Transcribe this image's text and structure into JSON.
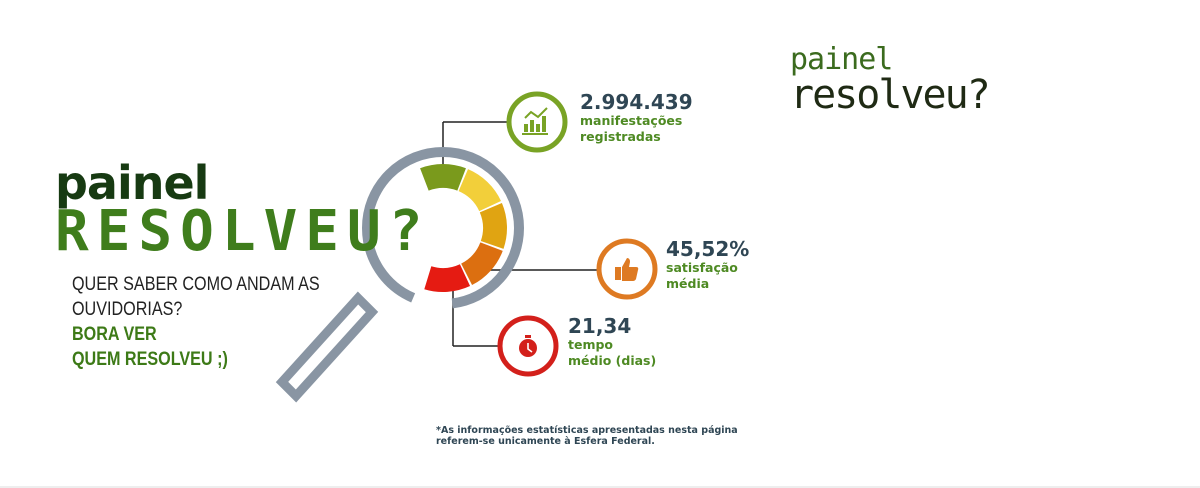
{
  "brand": {
    "line1": "painel",
    "line2": "resolveu?"
  },
  "logo": {
    "line1": "painel",
    "line2": "RESOLVEU?"
  },
  "tagline": {
    "q1": "QUER SABER COMO ANDAM AS",
    "q2": "OUVIDORIAS?",
    "b1": "BORA VER",
    "b2": "QUEM RESOLVEU ;)"
  },
  "gauge_colors": [
    "#7a9a1c",
    "#f2cf3a",
    "#e0a412",
    "#dc6f10",
    "#e51b12"
  ],
  "stats": [
    {
      "value": "2.994.439",
      "label1": "manifestações",
      "label2": "registradas",
      "icon": "chart-icon",
      "color": "#79a325"
    },
    {
      "value": "45,52%",
      "label1": "satisfação",
      "label2": "média",
      "icon": "thumbs-up-icon",
      "color": "#de7a22"
    },
    {
      "value": "21,34",
      "label1": "tempo",
      "label2": "médio (dias)",
      "icon": "stopwatch-icon",
      "color": "#d3201b"
    }
  ],
  "note": {
    "line1": "*As informações estatísticas apresentadas nesta página",
    "line2": "referem-se unicamente à Esfera Federal."
  }
}
